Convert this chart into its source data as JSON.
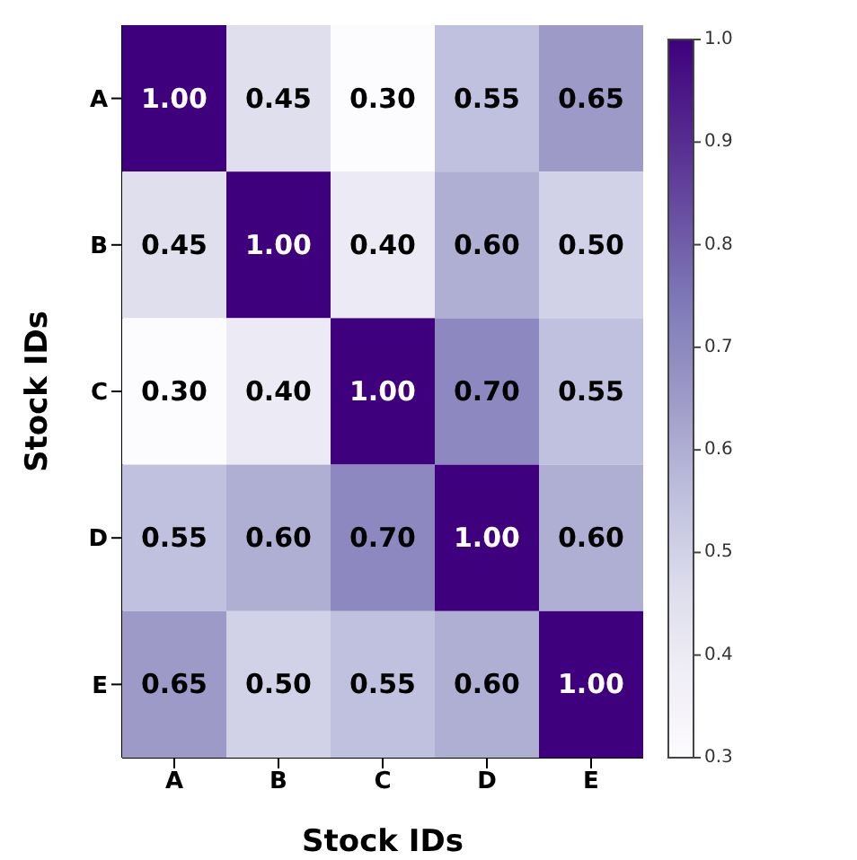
{
  "chart_data": {
    "type": "heatmap",
    "xlabel": "Stock IDs",
    "ylabel": "Stock IDs",
    "categories": [
      "A",
      "B",
      "C",
      "D",
      "E"
    ],
    "y_categories": [
      "A",
      "B",
      "C",
      "D",
      "E"
    ],
    "cells": [
      [
        1.0,
        0.45,
        0.3,
        0.55,
        0.65
      ],
      [
        0.45,
        1.0,
        0.4,
        0.6,
        0.5
      ],
      [
        0.3,
        0.4,
        1.0,
        0.7,
        0.55
      ],
      [
        0.55,
        0.6,
        0.7,
        1.0,
        0.6
      ],
      [
        0.65,
        0.5,
        0.55,
        0.6,
        1.0
      ]
    ],
    "cell_labels": [
      [
        "1.00",
        "0.45",
        "0.30",
        "0.55",
        "0.65"
      ],
      [
        "0.45",
        "1.00",
        "0.40",
        "0.60",
        "0.50"
      ],
      [
        "0.30",
        "0.40",
        "1.00",
        "0.70",
        "0.55"
      ],
      [
        "0.55",
        "0.60",
        "0.70",
        "1.00",
        "0.60"
      ],
      [
        "0.65",
        "0.50",
        "0.55",
        "0.60",
        "1.00"
      ]
    ],
    "clim": [
      0.3,
      1.0
    ],
    "cticks": [
      0.3,
      0.4,
      0.5,
      0.6,
      0.7,
      0.8,
      0.9,
      {
        "value": 1.0,
        "label": "1.0"
      }
    ]
  }
}
